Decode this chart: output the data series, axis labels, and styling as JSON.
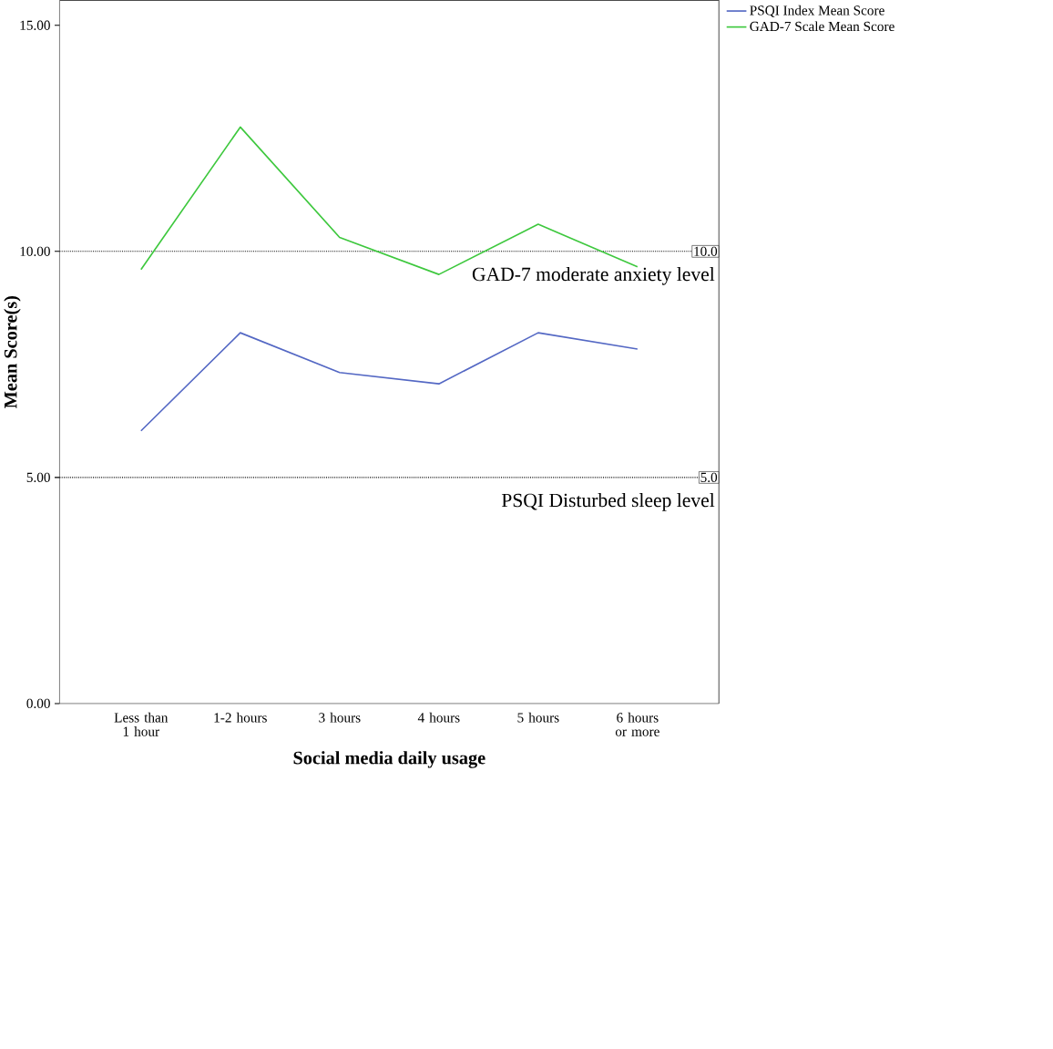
{
  "chart_data": {
    "type": "line",
    "xlabel": "Social media daily usage",
    "ylabel": "Mean Score(s)",
    "categories": [
      "Less than 1 hour",
      "1-2 hours",
      "3 hours",
      "4 hours",
      "5 hours",
      "6 hours or more"
    ],
    "series": [
      {
        "name": "PSQI Index Mean Score",
        "color": "#5468c4",
        "values": [
          6.03,
          8.2,
          7.32,
          7.07,
          8.2,
          7.84
        ]
      },
      {
        "name": "GAD-7 Scale Mean Score",
        "color": "#3ec83e",
        "values": [
          9.6,
          12.75,
          10.31,
          9.49,
          10.6,
          9.66
        ]
      }
    ],
    "ylim": [
      0,
      15.55
    ],
    "yticks": [
      {
        "value": 0,
        "label": "0.00"
      },
      {
        "value": 5,
        "label": "5.00"
      },
      {
        "value": 10,
        "label": "10.00"
      },
      {
        "value": 15,
        "label": "15.00"
      }
    ],
    "ref_lines": [
      {
        "axis": "y",
        "value": 10,
        "label": "10.0",
        "line_style": "dotted"
      },
      {
        "axis": "y",
        "value": 5,
        "label": "5.0",
        "line_style": "dotted"
      }
    ],
    "annotations": [
      {
        "text": "GAD-7 moderate anxiety level",
        "y": 10
      },
      {
        "text": "PSQI Disturbed sleep level",
        "y": 5
      }
    ],
    "grid": false,
    "legend": "top right",
    "marker": "none",
    "line_style": "solid"
  }
}
